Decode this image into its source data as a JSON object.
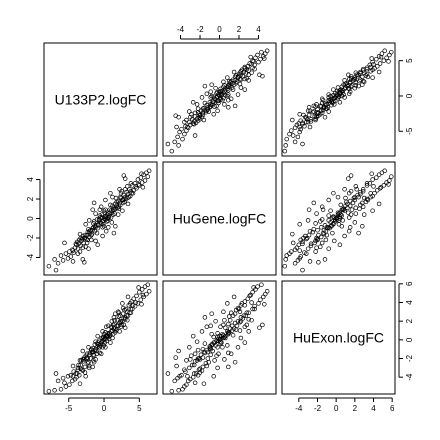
{
  "chart_data": {
    "type": "scatter",
    "layout": "pairs-matrix",
    "variables": [
      "U133P2.logFC",
      "HuGene.logFC",
      "HuExon.logFC"
    ],
    "axes": {
      "U133P2.logFC": {
        "range": [
          -8.5,
          7.5
        ],
        "ticks": [
          -5,
          0,
          5
        ]
      },
      "HuGene.logFC": {
        "range": [
          -5.8,
          5.8
        ],
        "ticks": [
          -4,
          -2,
          0,
          2,
          4
        ]
      },
      "HuExon.logFC": {
        "range": [
          -5.8,
          6.3
        ],
        "ticks": [
          -4,
          -2,
          0,
          2,
          4,
          6
        ]
      }
    },
    "tick_label_placement": {
      "top": [
        {
          "column": 1,
          "variable": "HuGene.logFC"
        }
      ],
      "bottom": [
        {
          "column": 0,
          "variable": "U133P2.logFC"
        },
        {
          "column": 2,
          "variable": "HuExon.logFC"
        }
      ],
      "left": [
        {
          "row": 1,
          "variable": "HuGene.logFC"
        }
      ],
      "right": [
        {
          "row": 0,
          "variable": "U133P2.logFC"
        },
        {
          "row": 2,
          "variable": "HuExon.logFC"
        }
      ]
    },
    "points": {
      "columns": [
        "U133P2.logFC",
        "HuGene.logFC",
        "HuExon.logFC"
      ],
      "rows": [
        [
          -0.2,
          -0.3,
          -0.1
        ],
        [
          0.3,
          0.2,
          0.4
        ],
        [
          -0.5,
          -0.4,
          -0.6
        ],
        [
          0.6,
          0.5,
          0.3
        ],
        [
          -0.8,
          -0.7,
          -0.5
        ],
        [
          1.0,
          0.8,
          0.9
        ],
        [
          -1.2,
          -0.9,
          -1.0
        ],
        [
          1.4,
          1.1,
          1.2
        ],
        [
          -1.6,
          -1.2,
          -1.3
        ],
        [
          1.8,
          1.3,
          1.5
        ],
        [
          -2.0,
          -1.5,
          -1.4
        ],
        [
          2.2,
          1.6,
          1.8
        ],
        [
          -2.4,
          -1.7,
          -1.9
        ],
        [
          2.6,
          1.9,
          2.0
        ],
        [
          -2.8,
          -2.0,
          -2.1
        ],
        [
          3.0,
          2.2,
          2.4
        ],
        [
          -3.2,
          -2.3,
          -2.2
        ],
        [
          3.4,
          2.5,
          2.6
        ],
        [
          -3.6,
          -2.6,
          -2.7
        ],
        [
          3.8,
          2.8,
          2.9
        ],
        [
          0.1,
          0.6,
          0.2
        ],
        [
          -0.1,
          -0.6,
          0.3
        ],
        [
          0.5,
          -0.2,
          0.7
        ],
        [
          -0.6,
          0.3,
          -0.8
        ],
        [
          0.9,
          1.4,
          0.5
        ],
        [
          -1.0,
          -1.5,
          -0.4
        ],
        [
          1.3,
          0.4,
          1.6
        ],
        [
          -1.4,
          -0.3,
          -1.7
        ],
        [
          1.7,
          2.1,
          1.0
        ],
        [
          -1.8,
          -2.2,
          -1.1
        ],
        [
          2.1,
          1.0,
          2.5
        ],
        [
          -2.2,
          -1.1,
          -2.4
        ],
        [
          2.5,
          2.8,
          1.6
        ],
        [
          -2.6,
          -2.9,
          -1.7
        ],
        [
          2.9,
          1.7,
          3.2
        ],
        [
          -3.0,
          -1.8,
          -3.3
        ],
        [
          3.3,
          3.3,
          2.1
        ],
        [
          -3.4,
          -3.4,
          -2.2
        ],
        [
          3.7,
          2.3,
          3.9
        ],
        [
          -3.8,
          -2.4,
          -3.6
        ],
        [
          0.0,
          0.0,
          0.0
        ],
        [
          0.2,
          -0.1,
          0.1
        ],
        [
          -0.3,
          0.1,
          -0.2
        ],
        [
          0.4,
          0.4,
          0.5
        ],
        [
          -0.4,
          -0.5,
          -0.3
        ],
        [
          0.7,
          0.3,
          0.6
        ],
        [
          -0.7,
          -0.2,
          -0.8
        ],
        [
          0.8,
          0.9,
          0.7
        ],
        [
          -0.9,
          -1.0,
          -0.7
        ],
        [
          1.1,
          0.6,
          1.3
        ],
        [
          -1.1,
          -0.7,
          -1.2
        ],
        [
          1.2,
          1.3,
          1.0
        ],
        [
          -1.3,
          -1.3,
          -1.1
        ],
        [
          1.5,
          0.9,
          1.7
        ],
        [
          -1.5,
          -0.9,
          -1.6
        ],
        [
          1.6,
          1.5,
          1.2
        ],
        [
          -1.7,
          -1.6,
          -1.3
        ],
        [
          1.9,
          1.1,
          2.1
        ],
        [
          -1.9,
          -1.2,
          -2.0
        ],
        [
          2.0,
          1.8,
          1.5
        ],
        [
          -2.1,
          -1.9,
          -1.6
        ],
        [
          2.3,
          1.4,
          2.6
        ],
        [
          -2.3,
          -1.4,
          -2.5
        ],
        [
          2.4,
          2.1,
          1.9
        ],
        [
          -2.5,
          -2.1,
          -2.0
        ],
        [
          2.7,
          1.6,
          2.8
        ],
        [
          -2.7,
          -1.7,
          -2.9
        ],
        [
          2.8,
          2.4,
          2.3
        ],
        [
          -2.9,
          -2.5,
          -2.3
        ],
        [
          3.1,
          2.0,
          3.3
        ],
        [
          -3.1,
          -2.1,
          -3.2
        ],
        [
          3.2,
          2.7,
          2.6
        ],
        [
          -3.3,
          -2.8,
          -2.7
        ],
        [
          3.5,
          2.2,
          3.7
        ],
        [
          -3.5,
          -2.2,
          -3.8
        ],
        [
          3.6,
          3.0,
          2.9
        ],
        [
          -3.7,
          -3.1,
          -3.0
        ],
        [
          3.9,
          2.6,
          4.1
        ],
        [
          -3.9,
          -2.7,
          -4.0
        ],
        [
          4.0,
          3.4,
          3.3
        ],
        [
          4.2,
          2.9,
          4.4
        ],
        [
          -4.1,
          -3.0,
          -4.2
        ],
        [
          4.4,
          3.6,
          3.6
        ],
        [
          -4.3,
          -3.5,
          -3.4
        ],
        [
          4.6,
          3.1,
          4.7
        ],
        [
          -4.5,
          -3.2,
          -4.4
        ],
        [
          4.8,
          4.0,
          3.9
        ],
        [
          -4.7,
          -3.9,
          -3.8
        ],
        [
          5.0,
          3.4,
          5.1
        ],
        [
          -4.9,
          -3.4,
          -4.8
        ],
        [
          5.2,
          4.2,
          4.3
        ],
        [
          5.4,
          3.7,
          5.4
        ],
        [
          5.6,
          4.5,
          4.6
        ],
        [
          5.8,
          3.9,
          5.7
        ],
        [
          6.0,
          4.7,
          4.9
        ],
        [
          6.2,
          4.3,
          5.9
        ],
        [
          6.4,
          4.9,
          5.2
        ],
        [
          5.3,
          4.6,
          3.8
        ],
        [
          4.9,
          3.5,
          5.6
        ],
        [
          5.5,
          3.2,
          4.8
        ],
        [
          -5.1,
          -4.1,
          -3.9
        ],
        [
          -5.4,
          -3.6,
          -5.0
        ],
        [
          -5.8,
          -4.3,
          -4.1
        ],
        [
          -6.1,
          -3.8,
          -5.3
        ],
        [
          -6.5,
          -4.6,
          -4.4
        ],
        [
          -7.0,
          -4.2,
          -5.4
        ],
        [
          -7.8,
          -4.9,
          -5.5
        ],
        [
          -6.8,
          -5.3,
          -3.6
        ],
        [
          -5.6,
          -2.5,
          -4.6
        ],
        [
          -4.4,
          -4.4,
          -2.8
        ],
        [
          0.3,
          -1.3,
          1.4
        ],
        [
          -0.4,
          1.2,
          -1.5
        ],
        [
          1.1,
          -0.4,
          2.0
        ],
        [
          -1.2,
          0.5,
          -2.1
        ],
        [
          2.0,
          0.4,
          3.0
        ],
        [
          -2.1,
          -0.2,
          -3.0
        ],
        [
          0.9,
          2.6,
          -0.3
        ],
        [
          -0.9,
          -2.7,
          0.4
        ],
        [
          1.6,
          -0.8,
          2.8
        ],
        [
          -1.6,
          0.9,
          -2.9
        ],
        [
          2.6,
          0.8,
          3.9
        ],
        [
          -2.6,
          -0.6,
          -3.9
        ],
        [
          3.0,
          4.1,
          1.3
        ],
        [
          -3.0,
          -4.2,
          -1.2
        ],
        [
          0.2,
          1.9,
          -0.8
        ],
        [
          -0.2,
          -1.8,
          0.9
        ],
        [
          1.4,
          -1.5,
          2.4
        ],
        [
          -1.4,
          1.6,
          -2.4
        ],
        [
          2.8,
          4.4,
          1.6
        ],
        [
          -2.8,
          -4.5,
          -1.9
        ],
        [
          0.0,
          0.8,
          -0.6
        ],
        [
          0.0,
          -0.8,
          0.6
        ],
        [
          0.6,
          -0.9,
          1.5
        ],
        [
          -0.6,
          0.9,
          -1.4
        ],
        [
          1.2,
          2.2,
          0.2
        ],
        [
          -1.2,
          -2.3,
          -0.2
        ],
        [
          2.2,
          3.0,
          0.9
        ],
        [
          -2.2,
          -3.1,
          -0.8
        ],
        [
          3.4,
          1.5,
          4.6
        ],
        [
          -3.4,
          -1.6,
          -4.7
        ],
        [
          0.5,
          0.0,
          0.4
        ],
        [
          -0.5,
          0.1,
          -0.4
        ],
        [
          0.8,
          0.6,
          0.4
        ],
        [
          -0.8,
          -0.6,
          -0.3
        ],
        [
          1.0,
          0.1,
          1.4
        ],
        [
          -1.0,
          -0.1,
          -1.5
        ],
        [
          1.3,
          0.9,
          0.6
        ],
        [
          -1.3,
          -0.8,
          -0.5
        ],
        [
          1.5,
          0.5,
          2.1
        ],
        [
          -1.5,
          -0.5,
          -2.2
        ],
        [
          1.8,
          1.7,
          1.1
        ],
        [
          -1.8,
          -1.7,
          -1.0
        ],
        [
          2.1,
          1.2,
          2.9
        ],
        [
          -2.1,
          -1.3,
          -2.8
        ],
        [
          2.4,
          2.6,
          1.4
        ],
        [
          -2.4,
          -2.5,
          -1.5
        ],
        [
          2.7,
          1.9,
          3.4
        ],
        [
          -2.7,
          -2.0,
          -3.5
        ],
        [
          3.0,
          3.0,
          2.2
        ],
        [
          -3.0,
          -3.0,
          -2.1
        ],
        [
          0.4,
          -0.3,
          -0.1
        ],
        [
          -0.3,
          0.4,
          0.2
        ],
        [
          0.1,
          0.2,
          -0.3
        ],
        [
          -0.1,
          -0.2,
          0.3
        ],
        [
          0.7,
          0.1,
          0.1
        ],
        [
          -0.7,
          -0.1,
          -0.1
        ],
        [
          0.2,
          0.9,
          0.8
        ],
        [
          -0.2,
          -0.9,
          -0.8
        ],
        [
          1.6,
          1.0,
          0.8
        ],
        [
          -1.6,
          -1.0,
          -0.9
        ],
        [
          2.3,
          2.2,
          2.0
        ],
        [
          -2.3,
          -2.2,
          -2.0
        ],
        [
          3.3,
          2.1,
          3.0
        ],
        [
          -3.3,
          -2.0,
          -3.1
        ],
        [
          4.1,
          2.6,
          3.7
        ],
        [
          -4.0,
          -2.6,
          -3.6
        ],
        [
          4.5,
          3.3,
          4.0
        ],
        [
          -4.4,
          -3.3,
          -3.9
        ],
        [
          3.8,
          3.6,
          3.3
        ],
        [
          -3.7,
          -3.6,
          -3.2
        ]
      ]
    }
  }
}
